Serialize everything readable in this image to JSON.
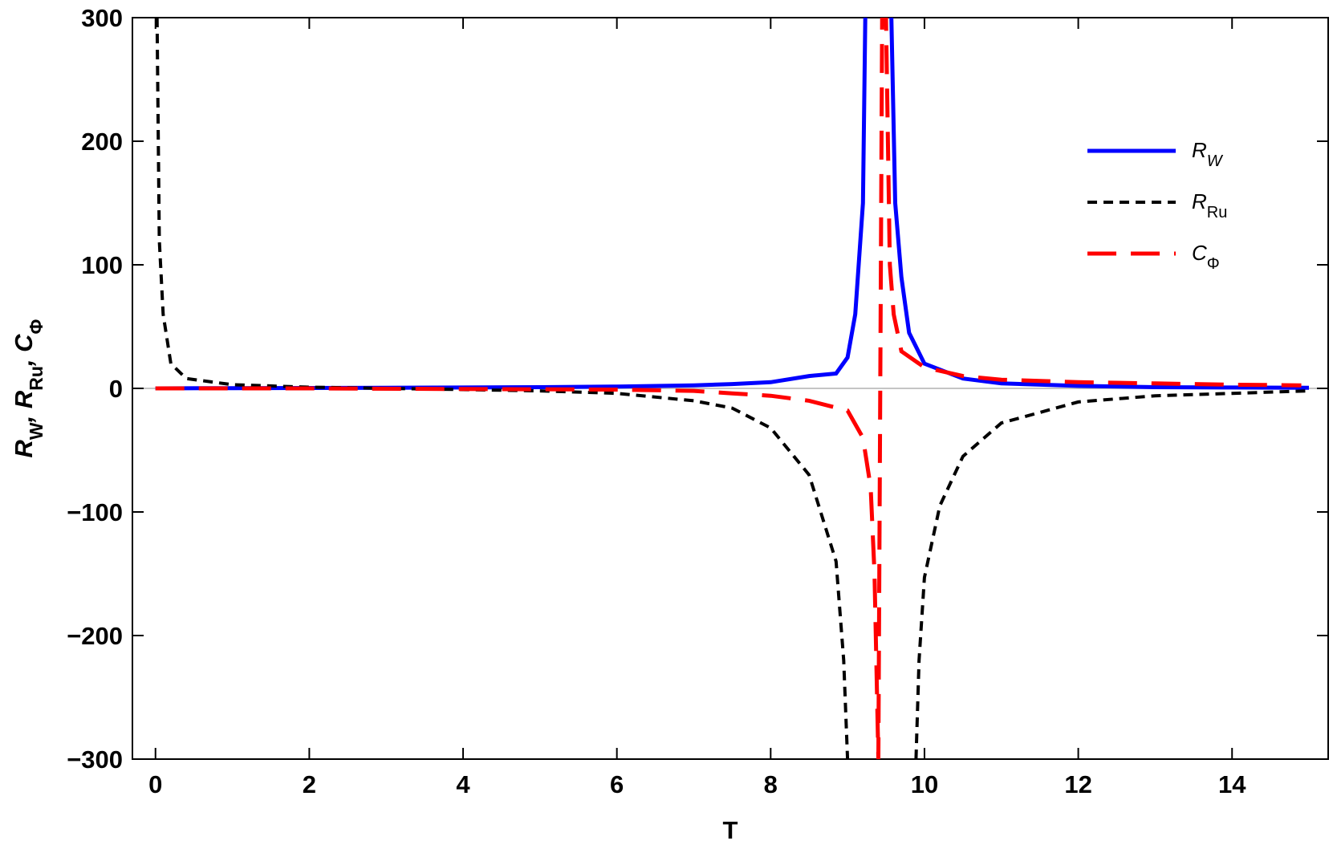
{
  "chart_data": {
    "type": "line",
    "xlabel": "T",
    "ylabel": [
      "R",
      "W",
      ", R",
      "Ru",
      ", C",
      "Φ"
    ],
    "xlim": [
      -0.3,
      15.25
    ],
    "ylim": [
      -300,
      300
    ],
    "xticks": [
      0,
      2,
      4,
      6,
      8,
      10,
      12,
      14
    ],
    "yticks": [
      {
        "value": -300,
        "label": "−300"
      },
      {
        "value": -200,
        "label": "−200"
      },
      {
        "value": -100,
        "label": "−100"
      },
      0,
      100,
      200,
      300
    ],
    "legend": "upper right",
    "series": [
      {
        "name": [
          "R",
          "W"
        ],
        "color": "#0000ff",
        "linestyle": "solid",
        "x": [
          0,
          1,
          2,
          3,
          4,
          5,
          6,
          7,
          7.5,
          8,
          8.5,
          8.85,
          9.0,
          9.1,
          9.2,
          9.23,
          null,
          9.57,
          9.62,
          9.7,
          9.8,
          10,
          10.5,
          11,
          12,
          13,
          14,
          15
        ],
        "values": [
          0,
          0.2,
          0.3,
          0.5,
          0.7,
          1,
          1.5,
          2.5,
          3.5,
          5,
          10,
          12,
          25,
          60,
          150,
          300,
          null,
          300,
          150,
          90,
          45,
          20,
          8,
          4,
          2,
          1,
          0.7,
          0.5
        ]
      },
      {
        "name": [
          "R",
          "Ru"
        ],
        "color": "#000000",
        "linestyle": "dotted",
        "x": [
          0.02,
          0.05,
          0.1,
          0.2,
          0.4,
          1,
          2,
          3,
          4,
          5,
          6,
          7,
          7.5,
          8,
          8.5,
          8.85,
          8.95,
          9.0,
          null,
          9.89,
          9.93,
          10.0,
          10.2,
          10.5,
          11,
          12,
          13,
          14,
          15
        ],
        "values": [
          300,
          120,
          60,
          20,
          8,
          3,
          1,
          0,
          -1,
          -2,
          -4,
          -10,
          -16,
          -32,
          -70,
          -140,
          -220,
          -300,
          null,
          -300,
          -220,
          -153,
          -95,
          -55,
          -28,
          -11,
          -6,
          -4,
          -2
        ]
      },
      {
        "name": [
          "C",
          "Φ"
        ],
        "color": "#ff0000",
        "linestyle": "dashed",
        "x": [
          0,
          2,
          4,
          6,
          7,
          7.5,
          8,
          8.5,
          9,
          9.2,
          9.3,
          9.35,
          9.4,
          9.45,
          9.5,
          9.55,
          9.6,
          9.7,
          10,
          10.5,
          11,
          12,
          13,
          14,
          14.9
        ],
        "values": [
          0,
          0,
          -0.5,
          -1,
          -2,
          -4,
          -6,
          -10,
          -18,
          -40,
          -80,
          -150,
          -300,
          300,
          300,
          100,
          60,
          30,
          17,
          10,
          7,
          5,
          4,
          3,
          2.5
        ]
      }
    ]
  }
}
